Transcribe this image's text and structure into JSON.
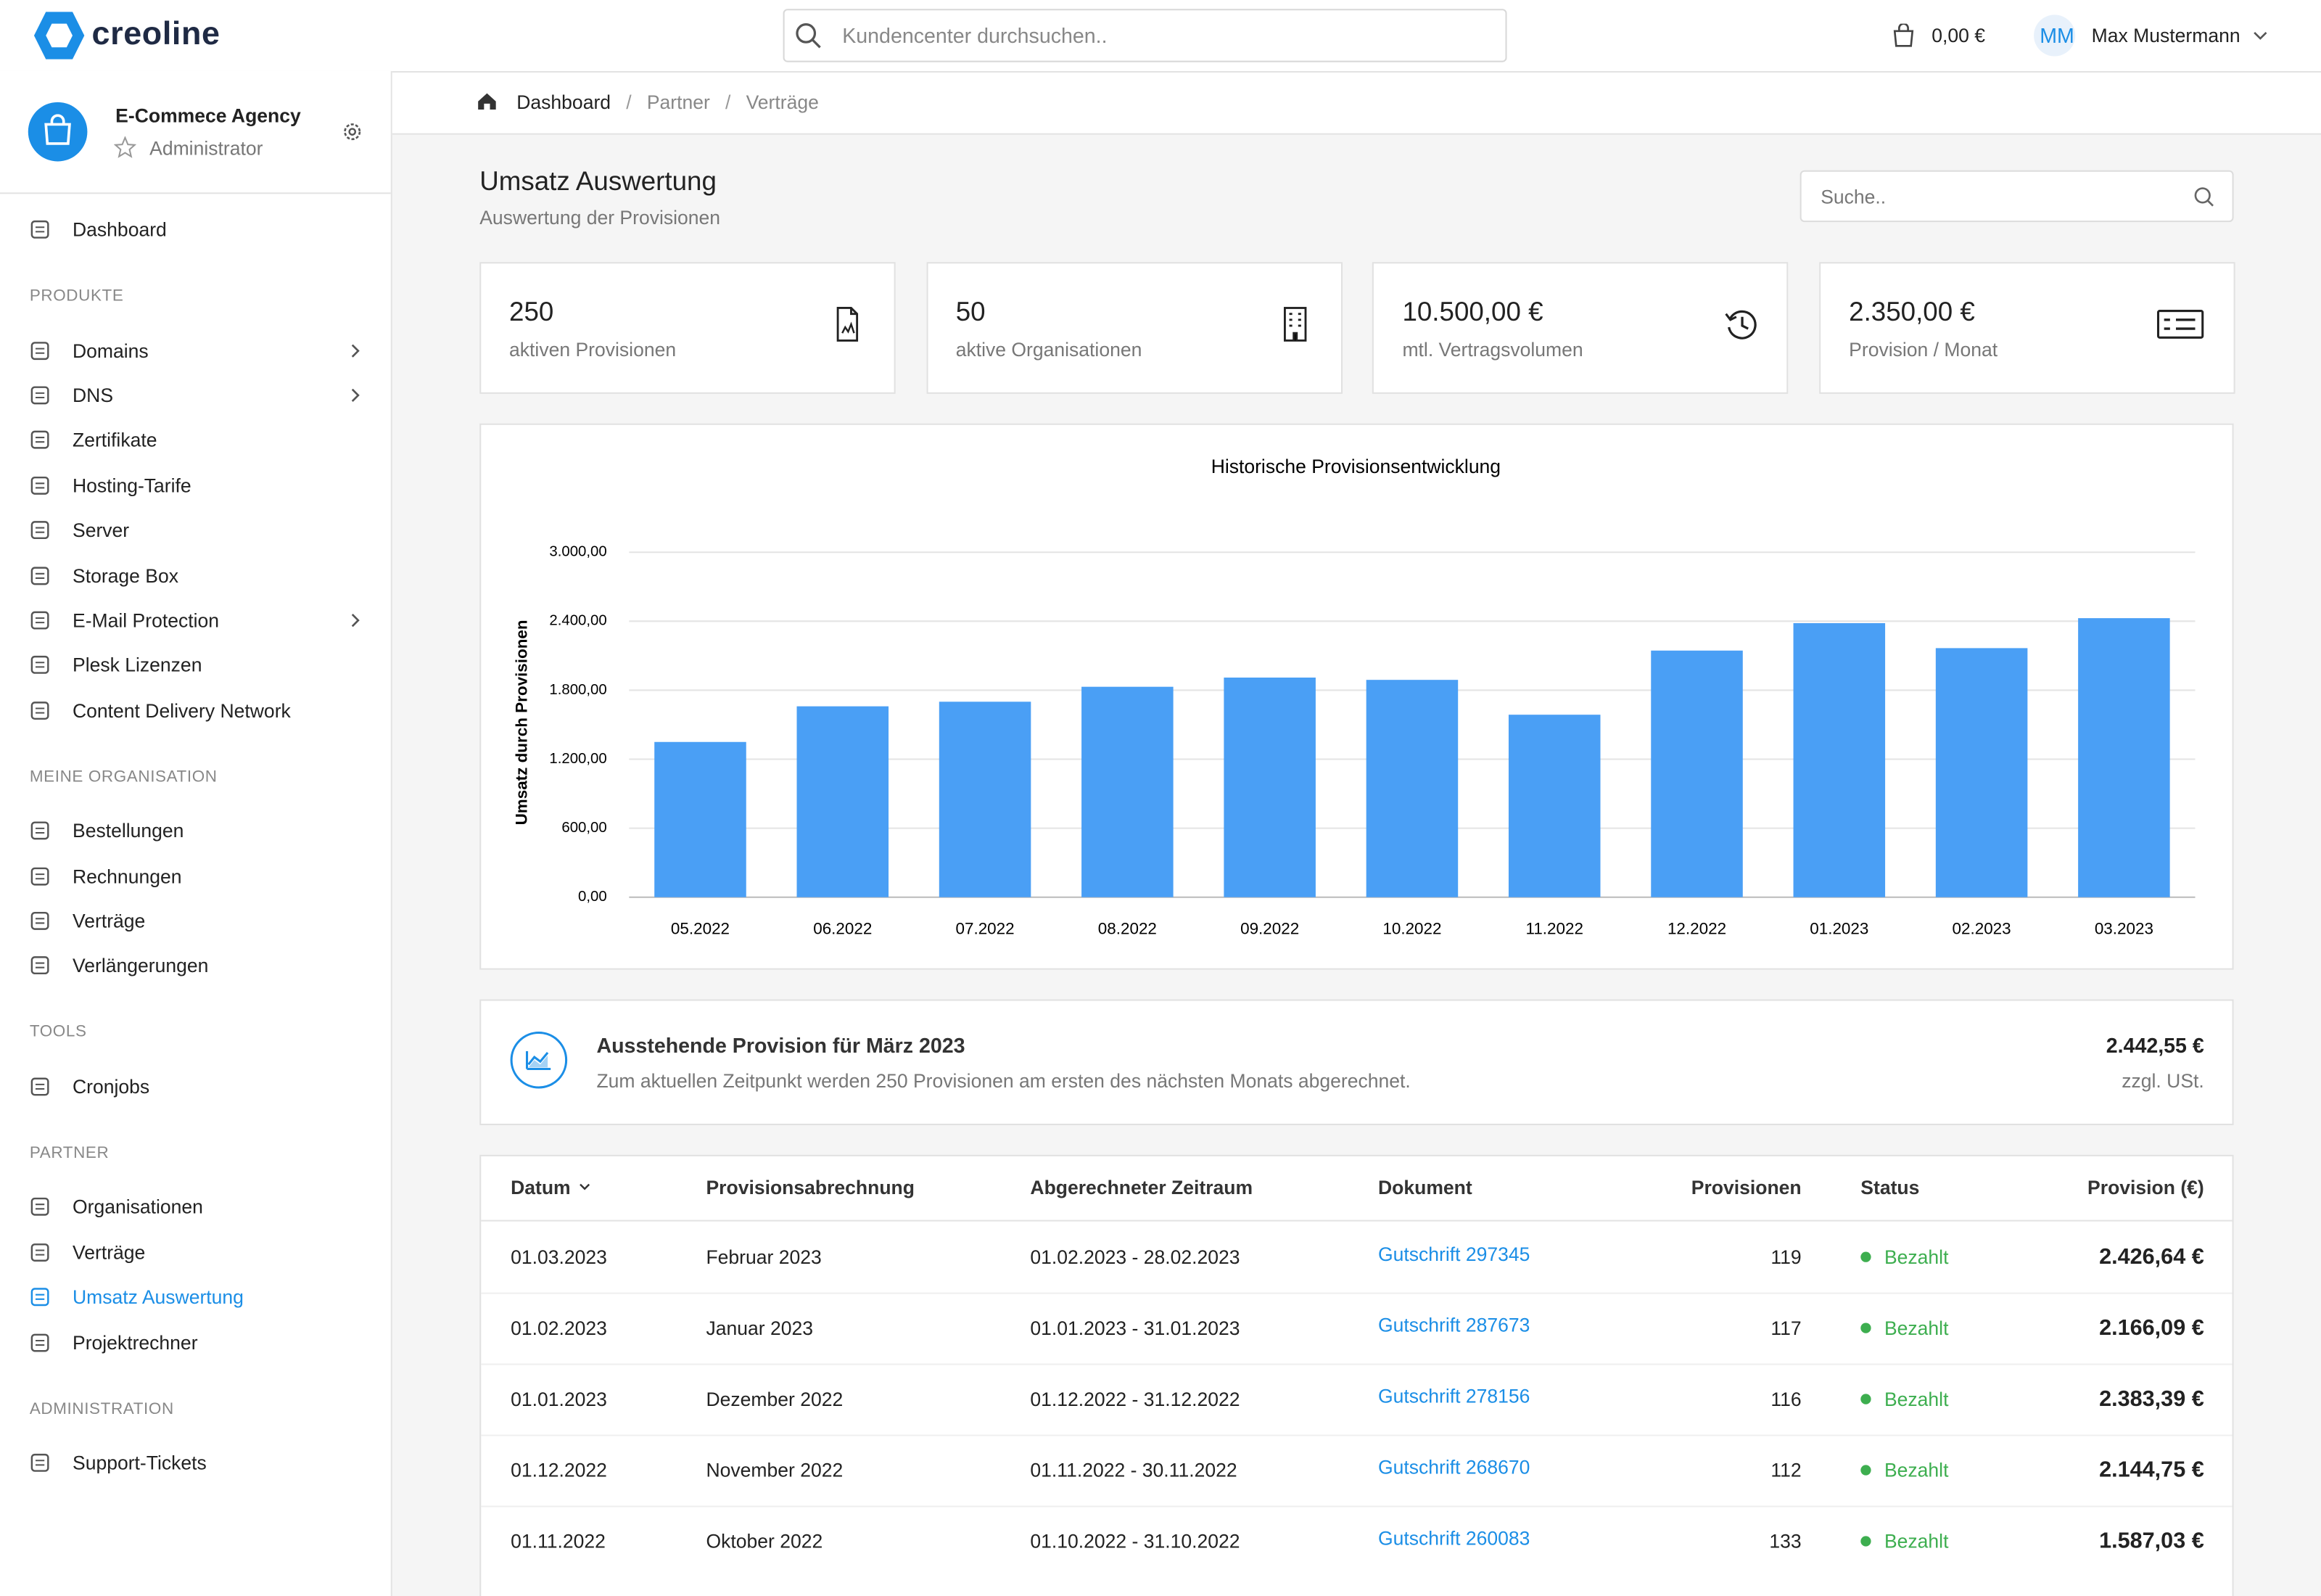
{
  "header": {
    "logo": "creoline",
    "search_placeholder": "Kundencenter durchsuchen..",
    "cart_total": "0,00 €",
    "user_initials": "MM",
    "user_name": "Max Mustermann"
  },
  "sidebar": {
    "account": {
      "name": "E-Commece Agency",
      "role": "Administrator"
    },
    "top": {
      "label": "Dashboard"
    },
    "sections": [
      {
        "heading": "PRODUKTE",
        "items": [
          {
            "label": "Domains",
            "submenu": true
          },
          {
            "label": "DNS",
            "submenu": true
          },
          {
            "label": "Zertifikate"
          },
          {
            "label": "Hosting-Tarife"
          },
          {
            "label": "Server"
          },
          {
            "label": "Storage Box"
          },
          {
            "label": "E-Mail Protection",
            "submenu": true
          },
          {
            "label": "Plesk Lizenzen"
          },
          {
            "label": "Content Delivery Network"
          }
        ]
      },
      {
        "heading": "MEINE ORGANISATION",
        "items": [
          {
            "label": "Bestellungen"
          },
          {
            "label": "Rechnungen"
          },
          {
            "label": "Verträge"
          },
          {
            "label": "Verlängerungen"
          }
        ]
      },
      {
        "heading": "TOOLS",
        "items": [
          {
            "label": "Cronjobs"
          }
        ]
      },
      {
        "heading": "PARTNER",
        "items": [
          {
            "label": "Organisationen"
          },
          {
            "label": "Verträge"
          },
          {
            "label": "Umsatz Auswertung",
            "active": true
          },
          {
            "label": "Projektrechner"
          }
        ]
      },
      {
        "heading": "ADMINISTRATION",
        "items": [
          {
            "label": "Support-Tickets"
          }
        ]
      }
    ]
  },
  "breadcrumb": [
    "Dashboard",
    "Partner",
    "Verträge"
  ],
  "page": {
    "title": "Umsatz Auswertung",
    "subtitle": "Auswertung der Provisionen",
    "search_placeholder": "Suche.."
  },
  "stats": [
    {
      "value": "250",
      "label": "aktiven Provisionen"
    },
    {
      "value": "50",
      "label": "aktive Organisationen"
    },
    {
      "value": "10.500,00 €",
      "label": "mtl. Vertragsvolumen"
    },
    {
      "value": "2.350,00 €",
      "label": "Provision / Monat"
    }
  ],
  "chart_data": {
    "type": "bar",
    "title": "Historische Provisionsentwicklung",
    "y_label": "Umsatz durch Provisionen",
    "categories": [
      "05.2022",
      "06.2022",
      "07.2022",
      "08.2022",
      "09.2022",
      "10.2022",
      "11.2022",
      "12.2022",
      "01.2023",
      "02.2023",
      "03.2023"
    ],
    "values": [
      1350,
      1660,
      1700,
      1830,
      1910,
      1890,
      1587.03,
      2144.75,
      2383.39,
      2166.09,
      2426.64
    ],
    "color": "#4a9ff5",
    "ylim": [
      0,
      3000
    ],
    "yticks": [
      {
        "value": 0,
        "label": "0,00"
      },
      {
        "value": 600,
        "label": "600,00"
      },
      {
        "value": 1200,
        "label": "1.200,00"
      },
      {
        "value": 1800,
        "label": "1.800,00"
      },
      {
        "value": 2400,
        "label": "2.400,00"
      },
      {
        "value": 3000,
        "label": "3.000,00"
      }
    ],
    "grid": true
  },
  "pending": {
    "title": "Ausstehende Provision für März 2023",
    "text": "Zum aktuellen Zeitpunkt werden 250 Provisionen am ersten des nächsten Monats abgerechnet.",
    "amount": "2.442,55 €",
    "note": "zzgl. USt."
  },
  "table": {
    "columns": [
      "Datum",
      "Provisionsabrechnung",
      "Abgerechneter Zeitraum",
      "Dokument",
      "Provisionen",
      "Status",
      "Provision (€)"
    ],
    "rows": [
      [
        "01.03.2023",
        "Februar 2023",
        "01.02.2023 - 28.02.2023",
        "Gutschrift 297345",
        119,
        "Bezahlt",
        "2.426,64 €"
      ],
      [
        "01.02.2023",
        "Januar 2023",
        "01.01.2023 - 31.01.2023",
        "Gutschrift 287673",
        117,
        "Bezahlt",
        "2.166,09 €"
      ],
      [
        "01.01.2023",
        "Dezember 2022",
        "01.12.2022 - 31.12.2022",
        "Gutschrift 278156",
        116,
        "Bezahlt",
        "2.383,39 €"
      ],
      [
        "01.12.2022",
        "November 2022",
        "01.11.2022 - 30.11.2022",
        "Gutschrift 268670",
        112,
        "Bezahlt",
        "2.144,75 €"
      ],
      [
        "01.11.2022",
        "Oktober 2022",
        "01.10.2022 - 31.10.2022",
        "Gutschrift 260083",
        133,
        "Bezahlt",
        "1.587,03 €"
      ]
    ]
  }
}
